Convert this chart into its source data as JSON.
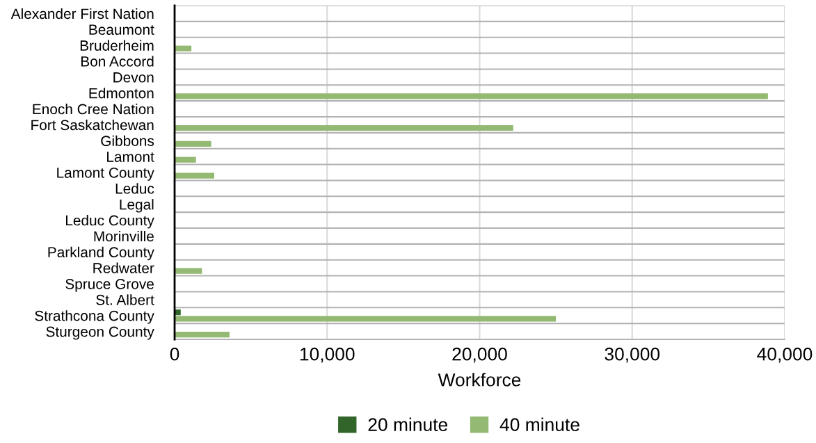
{
  "chart_data": {
    "type": "bar",
    "orientation": "horizontal",
    "categories": [
      "Alexander First Nation",
      "Beaumont",
      "Bruderheim",
      "Bon Accord",
      "Devon",
      "Edmonton",
      "Enoch Cree Nation",
      "Fort Saskatchewan",
      "Gibbons",
      "Lamont",
      "Lamont County",
      "Leduc",
      "Legal",
      "Leduc County",
      "Morinville",
      "Parkland County",
      "Redwater",
      "Spruce Grove",
      "St. Albert",
      "Strathcona County",
      "Sturgeon County"
    ],
    "series": [
      {
        "name": "20 minute",
        "color": "#32652a",
        "values": [
          null,
          null,
          null,
          null,
          null,
          null,
          null,
          null,
          null,
          null,
          null,
          null,
          null,
          null,
          null,
          null,
          null,
          null,
          null,
          400,
          null
        ]
      },
      {
        "name": "40 minute",
        "color": "#94b973",
        "values": [
          null,
          null,
          1100,
          null,
          null,
          38900,
          null,
          22200,
          2400,
          1400,
          2600,
          null,
          null,
          null,
          null,
          null,
          1800,
          null,
          null,
          25000,
          3600
        ]
      }
    ],
    "xlabel": "Workforce",
    "xlim": [
      0,
      40000
    ],
    "xticks": [
      0,
      {
        "value": 10000,
        "label": "10,000"
      },
      {
        "value": 20000,
        "label": "20,000"
      },
      {
        "value": 30000,
        "label": "30,000"
      },
      {
        "value": 40000,
        "label": "40,000"
      }
    ],
    "grid": true,
    "legend": "bottom"
  }
}
